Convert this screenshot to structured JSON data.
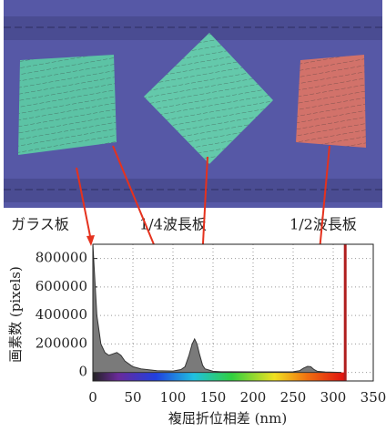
{
  "chart_data": {
    "type": "area",
    "annotations": [
      "ガラス板",
      "1/4波長板",
      "1/2波長板"
    ],
    "xlabel": "複屈折位相差 (nm)",
    "ylabel": "画素数 (pixels)",
    "x": [
      0,
      2,
      5,
      10,
      15,
      20,
      25,
      30,
      35,
      40,
      50,
      60,
      80,
      100,
      110,
      115,
      120,
      124,
      127,
      130,
      133,
      137,
      140,
      150,
      160,
      200,
      250,
      258,
      263,
      268,
      272,
      276,
      280,
      290,
      310
    ],
    "values": [
      900000,
      700000,
      400000,
      200000,
      140000,
      120000,
      130000,
      140000,
      120000,
      80000,
      40000,
      25000,
      12000,
      10000,
      20000,
      40000,
      120000,
      200000,
      235000,
      200000,
      130000,
      50000,
      25000,
      8000,
      5000,
      4000,
      5000,
      12000,
      30000,
      42000,
      40000,
      20000,
      8000,
      3000,
      0
    ],
    "color": "#7a7a7a",
    "xlim": [
      0,
      350
    ],
    "xticks": [
      0,
      50,
      100,
      150,
      200,
      250,
      300,
      350
    ],
    "ylim": [
      -60000,
      900000
    ],
    "yticks": [
      0,
      200000,
      400000,
      600000,
      800000
    ],
    "grid": true,
    "vline_x": 315,
    "vline_color": "#b01e1e"
  }
}
